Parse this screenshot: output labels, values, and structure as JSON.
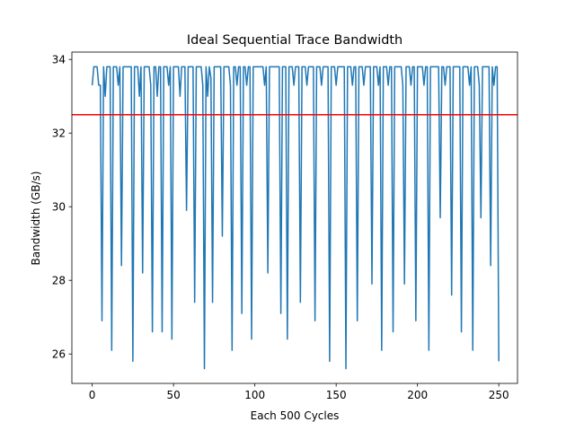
{
  "chart_data": {
    "type": "line",
    "title": "Ideal Sequential Trace Bandwidth",
    "xlabel": "Each 500 Cycles",
    "ylabel": "Bandwidth (GB/s)",
    "xlim": [
      -12.5,
      261.5
    ],
    "ylim": [
      25.2,
      34.2
    ],
    "x_ticks": [
      0,
      50,
      100,
      150,
      200,
      250
    ],
    "y_ticks": [
      26,
      28,
      30,
      32,
      34
    ],
    "grid": false,
    "legend": "none",
    "series": [
      {
        "color": "#1f77b4",
        "x_start": 0,
        "x_step": 1,
        "values": [
          33.3,
          33.8,
          33.8,
          33.8,
          33.3,
          33.3,
          26.9,
          33.8,
          33.0,
          33.8,
          33.8,
          33.8,
          26.1,
          33.8,
          33.8,
          33.8,
          33.3,
          33.8,
          28.4,
          33.8,
          33.8,
          33.8,
          33.8,
          33.8,
          33.8,
          25.8,
          33.8,
          33.8,
          33.8,
          33.0,
          33.8,
          28.2,
          33.8,
          33.8,
          33.8,
          33.8,
          33.3,
          26.6,
          33.8,
          33.8,
          33.0,
          33.8,
          33.8,
          26.6,
          33.8,
          33.8,
          33.8,
          33.3,
          33.8,
          26.4,
          33.8,
          33.8,
          33.8,
          33.8,
          33.0,
          33.8,
          33.8,
          33.8,
          29.9,
          33.8,
          33.8,
          33.8,
          33.8,
          27.4,
          33.8,
          33.8,
          33.8,
          33.8,
          33.3,
          25.6,
          33.8,
          33.0,
          33.8,
          33.5,
          27.4,
          33.8,
          33.8,
          33.8,
          33.8,
          33.8,
          29.2,
          33.8,
          33.8,
          33.8,
          33.8,
          33.3,
          26.1,
          33.8,
          33.8,
          33.3,
          33.8,
          33.8,
          27.1,
          33.8,
          33.8,
          33.3,
          33.8,
          33.8,
          26.4,
          33.8,
          33.8,
          33.8,
          33.8,
          33.8,
          33.8,
          33.8,
          33.3,
          33.8,
          28.2,
          33.8,
          33.8,
          33.8,
          33.8,
          33.8,
          33.8,
          33.8,
          27.1,
          33.8,
          33.8,
          33.8,
          26.4,
          33.8,
          33.8,
          33.8,
          33.3,
          33.8,
          33.8,
          33.8,
          27.4,
          33.8,
          33.8,
          33.8,
          33.3,
          33.8,
          33.8,
          33.8,
          33.8,
          26.9,
          33.8,
          33.8,
          33.8,
          33.3,
          33.8,
          33.8,
          33.8,
          33.8,
          25.8,
          33.8,
          33.8,
          33.8,
          33.3,
          33.8,
          33.8,
          33.8,
          33.8,
          33.8,
          25.6,
          33.8,
          33.8,
          33.8,
          33.3,
          33.8,
          33.8,
          26.9,
          33.8,
          33.8,
          33.8,
          33.3,
          33.8,
          33.8,
          33.8,
          33.8,
          27.9,
          33.8,
          33.8,
          33.8,
          33.3,
          33.8,
          26.1,
          33.8,
          33.8,
          33.8,
          33.3,
          33.8,
          33.8,
          26.6,
          33.8,
          33.8,
          33.8,
          33.8,
          33.8,
          33.3,
          27.9,
          33.8,
          33.8,
          33.8,
          33.3,
          33.8,
          33.8,
          26.9,
          33.8,
          33.8,
          33.8,
          33.8,
          33.3,
          33.8,
          33.8,
          26.1,
          33.8,
          33.8,
          33.8,
          33.8,
          33.8,
          33.8,
          29.7,
          33.8,
          33.8,
          33.3,
          33.8,
          33.8,
          33.8,
          27.6,
          33.8,
          33.8,
          33.8,
          33.8,
          33.8,
          26.6,
          33.8,
          33.8,
          33.8,
          33.8,
          33.3,
          33.8,
          26.1,
          33.8,
          33.8,
          33.8,
          33.3,
          29.7,
          33.8,
          33.8,
          33.8,
          33.8,
          33.8,
          28.4,
          33.8,
          33.3,
          33.8,
          33.8,
          25.8
        ]
      }
    ],
    "reference_lines": [
      {
        "orientation": "horizontal",
        "y": 32.5,
        "color": "#ff0000"
      }
    ]
  }
}
